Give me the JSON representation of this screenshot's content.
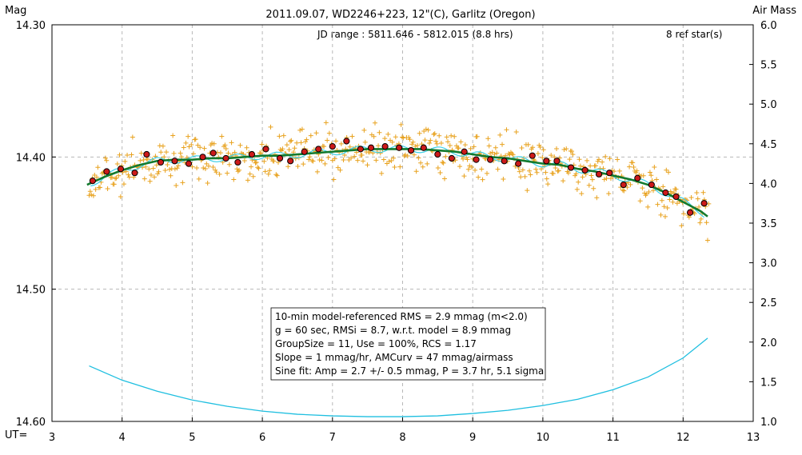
{
  "chart_data": {
    "type": "scatter",
    "title": "2011.09.07, WD2246+223, 12\"(C), Garlitz (Oregon)",
    "y_left_label": "Mag",
    "y_right_label": "Air Mass",
    "x_axis_prefix": "UT=",
    "jd_range_text": "JD range : 5811.646 - 5812.015 (8.8 hrs)",
    "ref_star_text": "8 ref star(s)",
    "x_range": [
      3,
      13
    ],
    "x_ticks": [
      3,
      4,
      5,
      6,
      7,
      8,
      9,
      10,
      11,
      12,
      13
    ],
    "y_left_range": [
      14.3,
      14.6
    ],
    "y_left_ticks": [
      {
        "value": 14.3,
        "label": "14.30"
      },
      {
        "value": 14.4,
        "label": "14.40"
      },
      {
        "value": 14.5,
        "label": "14.50"
      },
      {
        "value": 14.6,
        "label": "14.60"
      }
    ],
    "y_right_range": [
      1.0,
      6.0
    ],
    "y_right_ticks": [
      {
        "value": 6.0,
        "label": "6.0"
      },
      {
        "value": 5.5,
        "label": "5.5"
      },
      {
        "value": 5.0,
        "label": "5.0"
      },
      {
        "value": 4.5,
        "label": "4.5"
      },
      {
        "value": 4.0,
        "label": "4.0"
      },
      {
        "value": 3.5,
        "label": "3.5"
      },
      {
        "value": 3.0,
        "label": "3.0"
      },
      {
        "value": 2.5,
        "label": "2.5"
      },
      {
        "value": 2.0,
        "label": "2.0"
      },
      {
        "value": 1.5,
        "label": "1.5"
      },
      {
        "value": 1.0,
        "label": "1.0"
      }
    ],
    "grid": "dashed",
    "stats_lines": [
      "10-min model-referenced RMS = 2.9 mmag (m<2.0)",
      "g = 60 sec, RMSi = 8.7, w.r.t. model = 8.9 mmag",
      "GroupSize = 11, Use = 100%, RCS = 1.17",
      "Slope = 1 mmag/hr, AMCurv = 47 mmag/airmass",
      "Sine fit: Amp = 2.7 +/- 0.5 mmag, P = 3.7 hr, 5.1 sigma"
    ],
    "colors": {
      "raw_points": "#e8a21f",
      "binned_fill": "#cc1a1a",
      "binned_stroke": "#000000",
      "model_line": "#137a2e",
      "sine_line": "#3fd0e8",
      "airmass_line": "#1fbfe0",
      "grid": "#b8b8b8"
    },
    "binned_points": {
      "x": [
        3.58,
        3.78,
        3.98,
        4.18,
        4.35,
        4.55,
        4.75,
        4.95,
        5.15,
        5.3,
        5.48,
        5.65,
        5.85,
        6.05,
        6.25,
        6.4,
        6.6,
        6.8,
        7.0,
        7.2,
        7.4,
        7.55,
        7.75,
        7.95,
        8.12,
        8.3,
        8.5,
        8.7,
        8.88,
        9.05,
        9.25,
        9.45,
        9.65,
        9.85,
        10.05,
        10.2,
        10.4,
        10.6,
        10.8,
        10.95,
        11.15,
        11.35,
        11.55,
        11.75,
        11.9,
        12.1,
        12.3
      ],
      "y": [
        14.418,
        14.411,
        14.409,
        14.412,
        14.398,
        14.404,
        14.403,
        14.405,
        14.4,
        14.397,
        14.401,
        14.404,
        14.398,
        14.394,
        14.401,
        14.403,
        14.396,
        14.394,
        14.392,
        14.388,
        14.394,
        14.393,
        14.392,
        14.393,
        14.395,
        14.393,
        14.398,
        14.401,
        14.396,
        14.402,
        14.402,
        14.403,
        14.405,
        14.399,
        14.403,
        14.403,
        14.408,
        14.41,
        14.413,
        14.412,
        14.421,
        14.416,
        14.421,
        14.427,
        14.43,
        14.442,
        14.435
      ]
    },
    "model_curve": {
      "x": [
        3.5,
        3.75,
        4.0,
        4.25,
        4.5,
        4.75,
        5.0,
        5.25,
        5.5,
        5.75,
        6.0,
        6.25,
        6.5,
        6.75,
        7.0,
        7.25,
        7.5,
        7.75,
        8.0,
        8.25,
        8.5,
        8.75,
        9.0,
        9.25,
        9.5,
        9.75,
        10.0,
        10.25,
        10.5,
        10.75,
        11.0,
        11.25,
        11.5,
        11.75,
        12.0,
        12.25,
        12.35
      ],
      "y": [
        14.421,
        14.415,
        14.41,
        14.406,
        14.403,
        14.402,
        14.402,
        14.401,
        14.401,
        14.4,
        14.399,
        14.399,
        14.398,
        14.397,
        14.396,
        14.395,
        14.394,
        14.394,
        14.394,
        14.394,
        14.395,
        14.396,
        14.398,
        14.4,
        14.401,
        14.403,
        14.405,
        14.406,
        14.409,
        14.411,
        14.414,
        14.417,
        14.421,
        14.427,
        14.434,
        14.441,
        14.445
      ]
    },
    "airmass_curve": {
      "x": [
        3.53,
        4.0,
        4.5,
        5.0,
        5.5,
        6.0,
        6.5,
        7.0,
        7.5,
        8.0,
        8.5,
        9.0,
        9.5,
        10.0,
        10.5,
        11.0,
        11.5,
        12.0,
        12.35
      ],
      "y": [
        1.7,
        1.52,
        1.38,
        1.27,
        1.19,
        1.13,
        1.09,
        1.07,
        1.06,
        1.06,
        1.07,
        1.1,
        1.14,
        1.2,
        1.28,
        1.4,
        1.56,
        1.8,
        2.05
      ]
    }
  }
}
